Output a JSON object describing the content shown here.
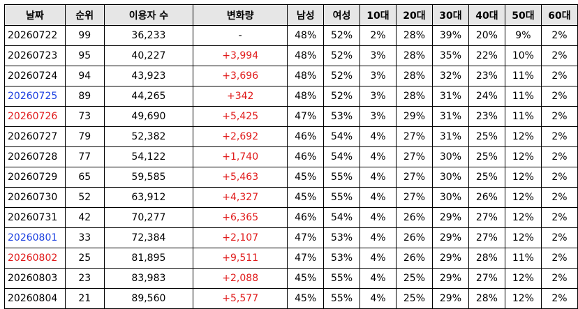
{
  "table": {
    "headers": [
      "날짜",
      "순위",
      "이용자 수",
      "변화량",
      "남성",
      "여성",
      "10대",
      "20대",
      "30대",
      "40대",
      "50대",
      "60대"
    ],
    "rows": [
      {
        "date": "20260722",
        "date_color": "black",
        "cells": [
          "99",
          "36,233",
          "-",
          "48%",
          "52%",
          "2%",
          "28%",
          "39%",
          "20%",
          "9%",
          "2%"
        ]
      },
      {
        "date": "20260723",
        "date_color": "black",
        "cells": [
          "95",
          "40,227",
          "+3,994",
          "48%",
          "52%",
          "3%",
          "28%",
          "35%",
          "22%",
          "10%",
          "2%"
        ]
      },
      {
        "date": "20260724",
        "date_color": "black",
        "cells": [
          "94",
          "43,923",
          "+3,696",
          "48%",
          "52%",
          "3%",
          "28%",
          "32%",
          "23%",
          "11%",
          "2%"
        ]
      },
      {
        "date": "20260725",
        "date_color": "blue",
        "cells": [
          "89",
          "44,265",
          "+342",
          "48%",
          "52%",
          "3%",
          "28%",
          "31%",
          "24%",
          "11%",
          "2%"
        ]
      },
      {
        "date": "20260726",
        "date_color": "red",
        "cells": [
          "73",
          "49,690",
          "+5,425",
          "47%",
          "53%",
          "3%",
          "29%",
          "31%",
          "23%",
          "11%",
          "2%"
        ]
      },
      {
        "date": "20260727",
        "date_color": "black",
        "cells": [
          "79",
          "52,382",
          "+2,692",
          "46%",
          "54%",
          "4%",
          "27%",
          "31%",
          "25%",
          "12%",
          "2%"
        ]
      },
      {
        "date": "20260728",
        "date_color": "black",
        "cells": [
          "77",
          "54,122",
          "+1,740",
          "46%",
          "54%",
          "4%",
          "27%",
          "30%",
          "25%",
          "12%",
          "2%"
        ]
      },
      {
        "date": "20260729",
        "date_color": "black",
        "cells": [
          "65",
          "59,585",
          "+5,463",
          "45%",
          "55%",
          "4%",
          "27%",
          "30%",
          "25%",
          "12%",
          "2%"
        ]
      },
      {
        "date": "20260730",
        "date_color": "black",
        "cells": [
          "52",
          "63,912",
          "+4,327",
          "45%",
          "55%",
          "4%",
          "27%",
          "30%",
          "26%",
          "12%",
          "2%"
        ]
      },
      {
        "date": "20260731",
        "date_color": "black",
        "cells": [
          "42",
          "70,277",
          "+6,365",
          "46%",
          "54%",
          "4%",
          "26%",
          "29%",
          "27%",
          "12%",
          "2%"
        ]
      },
      {
        "date": "20260801",
        "date_color": "blue",
        "cells": [
          "33",
          "72,384",
          "+2,107",
          "47%",
          "53%",
          "4%",
          "26%",
          "29%",
          "27%",
          "12%",
          "2%"
        ]
      },
      {
        "date": "20260802",
        "date_color": "red",
        "cells": [
          "25",
          "81,895",
          "+9,511",
          "47%",
          "53%",
          "4%",
          "26%",
          "29%",
          "28%",
          "11%",
          "2%"
        ]
      },
      {
        "date": "20260803",
        "date_color": "black",
        "cells": [
          "23",
          "83,983",
          "+2,088",
          "45%",
          "55%",
          "4%",
          "25%",
          "29%",
          "27%",
          "12%",
          "2%"
        ]
      },
      {
        "date": "20260804",
        "date_color": "black",
        "cells": [
          "21",
          "89,560",
          "+5,577",
          "45%",
          "55%",
          "4%",
          "25%",
          "29%",
          "28%",
          "12%",
          "2%"
        ]
      }
    ]
  },
  "colors": {
    "blue": "#1a3fe0",
    "red": "#e01a1a",
    "header_bg": "#e6e6e6"
  }
}
